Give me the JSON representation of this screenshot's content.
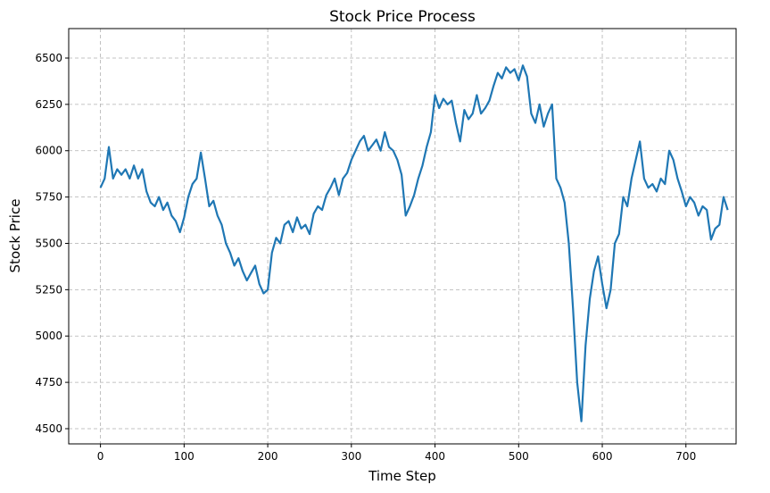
{
  "chart_data": {
    "type": "line",
    "title": "Stock Price Process",
    "xlabel": "Time Step",
    "ylabel": "Stock Price",
    "x": [
      0,
      5,
      10,
      15,
      20,
      25,
      30,
      35,
      40,
      45,
      50,
      55,
      60,
      65,
      70,
      75,
      80,
      85,
      90,
      95,
      100,
      105,
      110,
      115,
      120,
      125,
      130,
      135,
      140,
      145,
      150,
      155,
      160,
      165,
      170,
      175,
      180,
      185,
      190,
      195,
      200,
      205,
      210,
      215,
      220,
      225,
      230,
      235,
      240,
      245,
      250,
      255,
      260,
      265,
      270,
      275,
      280,
      285,
      290,
      295,
      300,
      305,
      310,
      315,
      320,
      325,
      330,
      335,
      340,
      345,
      350,
      355,
      360,
      365,
      370,
      375,
      380,
      385,
      390,
      395,
      400,
      405,
      410,
      415,
      420,
      425,
      430,
      435,
      440,
      445,
      450,
      455,
      460,
      465,
      470,
      475,
      480,
      485,
      490,
      495,
      500,
      505,
      510,
      515,
      520,
      525,
      530,
      535,
      540,
      545,
      550,
      555,
      560,
      565,
      570,
      575,
      580,
      585,
      590,
      595,
      600,
      605,
      610,
      615,
      620,
      625,
      630,
      635,
      640,
      645,
      650,
      655,
      660,
      665,
      670,
      675,
      680,
      685,
      690,
      695,
      700,
      705,
      710,
      715,
      720,
      725,
      730,
      735,
      740,
      745,
      750
    ],
    "series": [
      {
        "name": "Stock Price",
        "color": "#1f77b4",
        "values": [
          5800,
          5850,
          6020,
          5850,
          5900,
          5870,
          5900,
          5850,
          5920,
          5850,
          5900,
          5780,
          5720,
          5700,
          5750,
          5680,
          5720,
          5650,
          5620,
          5560,
          5640,
          5750,
          5820,
          5850,
          5990,
          5850,
          5700,
          5730,
          5650,
          5600,
          5500,
          5450,
          5380,
          5420,
          5350,
          5300,
          5340,
          5380,
          5280,
          5230,
          5250,
          5450,
          5530,
          5500,
          5600,
          5620,
          5560,
          5640,
          5580,
          5600,
          5550,
          5660,
          5700,
          5680,
          5760,
          5800,
          5850,
          5760,
          5850,
          5880,
          5950,
          6000,
          6050,
          6080,
          6000,
          6030,
          6060,
          6000,
          6100,
          6020,
          6000,
          5950,
          5870,
          5650,
          5700,
          5760,
          5850,
          5920,
          6020,
          6100,
          6300,
          6230,
          6280,
          6250,
          6270,
          6150,
          6050,
          6220,
          6170,
          6200,
          6300,
          6200,
          6230,
          6270,
          6350,
          6420,
          6390,
          6450,
          6420,
          6440,
          6380,
          6460,
          6400,
          6200,
          6150,
          6250,
          6130,
          6200,
          6250,
          5850,
          5800,
          5720,
          5500,
          5150,
          4750,
          4540,
          4950,
          5200,
          5350,
          5430,
          5280,
          5150,
          5250,
          5500,
          5550,
          5750,
          5700,
          5850,
          5950,
          6050,
          5850,
          5800,
          5820,
          5780,
          5850,
          5820,
          6000,
          5950,
          5850,
          5780,
          5700,
          5750,
          5720,
          5650,
          5700,
          5680,
          5520,
          5580,
          5600,
          5750,
          5680
        ]
      }
    ],
    "xlim": [
      -38,
      760
    ],
    "ylim": [
      4418,
      6659
    ],
    "xticks": [
      0,
      100,
      200,
      300,
      400,
      500,
      600,
      700
    ],
    "yticks": [
      4500,
      4750,
      5000,
      5250,
      5500,
      5750,
      6000,
      6250,
      6500
    ],
    "grid": true
  }
}
